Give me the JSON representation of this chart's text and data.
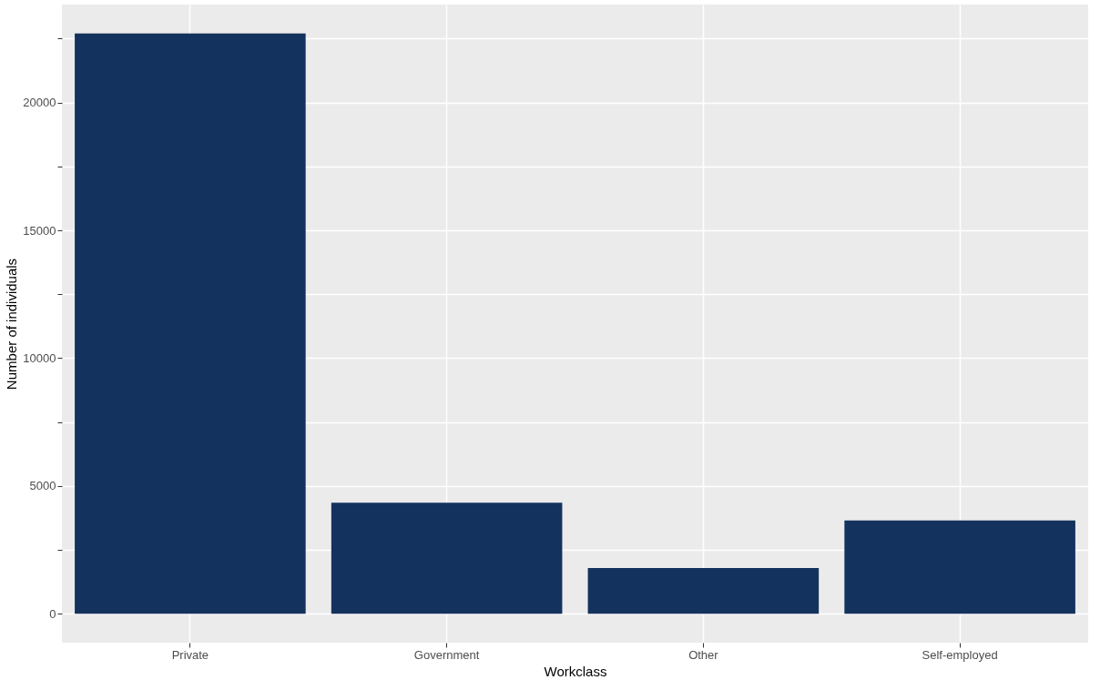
{
  "chart_data": {
    "type": "bar",
    "xlabel": "Workclass",
    "ylabel": "Number of individuals",
    "categories": [
      "Private",
      "Government",
      "Other",
      "Self-employed"
    ],
    "values": [
      22700,
      4340,
      1790,
      3650
    ],
    "color": "#14325e",
    "ylim": [
      -1135,
      23835
    ],
    "yticks": [
      0,
      {
        "value": 2500,
        "label": null
      },
      5000,
      {
        "value": 7500,
        "label": null
      },
      10000,
      {
        "value": 12500,
        "label": null
      },
      15000,
      {
        "value": 17500,
        "label": null
      },
      20000,
      {
        "value": 22500,
        "label": null
      }
    ],
    "grid": true
  }
}
